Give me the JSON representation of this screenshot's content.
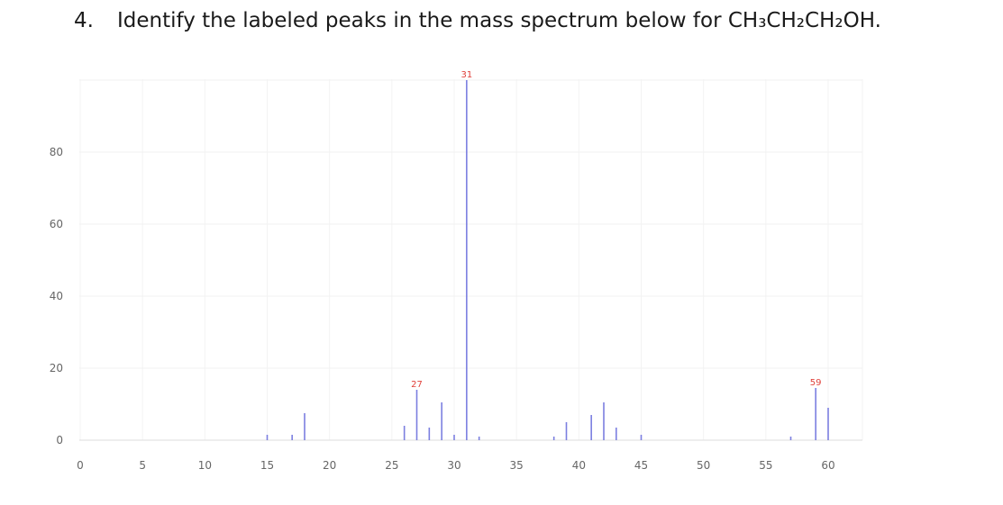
{
  "question": {
    "number": "4.",
    "text": "Identify the labeled peaks in the mass spectrum below for CH₃CH₂CH₂OH."
  },
  "chart_data": {
    "type": "bar",
    "title": "",
    "xlabel": "",
    "ylabel": "",
    "xlim": [
      0,
      63
    ],
    "ylim": [
      0,
      100
    ],
    "x_ticks": [
      0,
      5,
      10,
      15,
      20,
      25,
      30,
      35,
      40,
      45,
      50,
      55,
      60
    ],
    "y_ticks": [
      0,
      20,
      40,
      60,
      80
    ],
    "grid": true,
    "bar_color": "#7b7fe0",
    "label_color": "#e0403a",
    "peaks": [
      {
        "x": 15,
        "y": 1.5
      },
      {
        "x": 17,
        "y": 1.5
      },
      {
        "x": 18,
        "y": 7.5
      },
      {
        "x": 26,
        "y": 4
      },
      {
        "x": 27,
        "y": 14,
        "label": "27"
      },
      {
        "x": 28,
        "y": 3.5
      },
      {
        "x": 29,
        "y": 10.5
      },
      {
        "x": 30,
        "y": 1.5
      },
      {
        "x": 31,
        "y": 100,
        "label": "31"
      },
      {
        "x": 32,
        "y": 1
      },
      {
        "x": 38,
        "y": 1
      },
      {
        "x": 39,
        "y": 5
      },
      {
        "x": 41,
        "y": 7
      },
      {
        "x": 42,
        "y": 10.5
      },
      {
        "x": 43,
        "y": 3.5
      },
      {
        "x": 45,
        "y": 1.5
      },
      {
        "x": 57,
        "y": 1
      },
      {
        "x": 59,
        "y": 14.5,
        "label": "59"
      },
      {
        "x": 60,
        "y": 9
      }
    ]
  }
}
